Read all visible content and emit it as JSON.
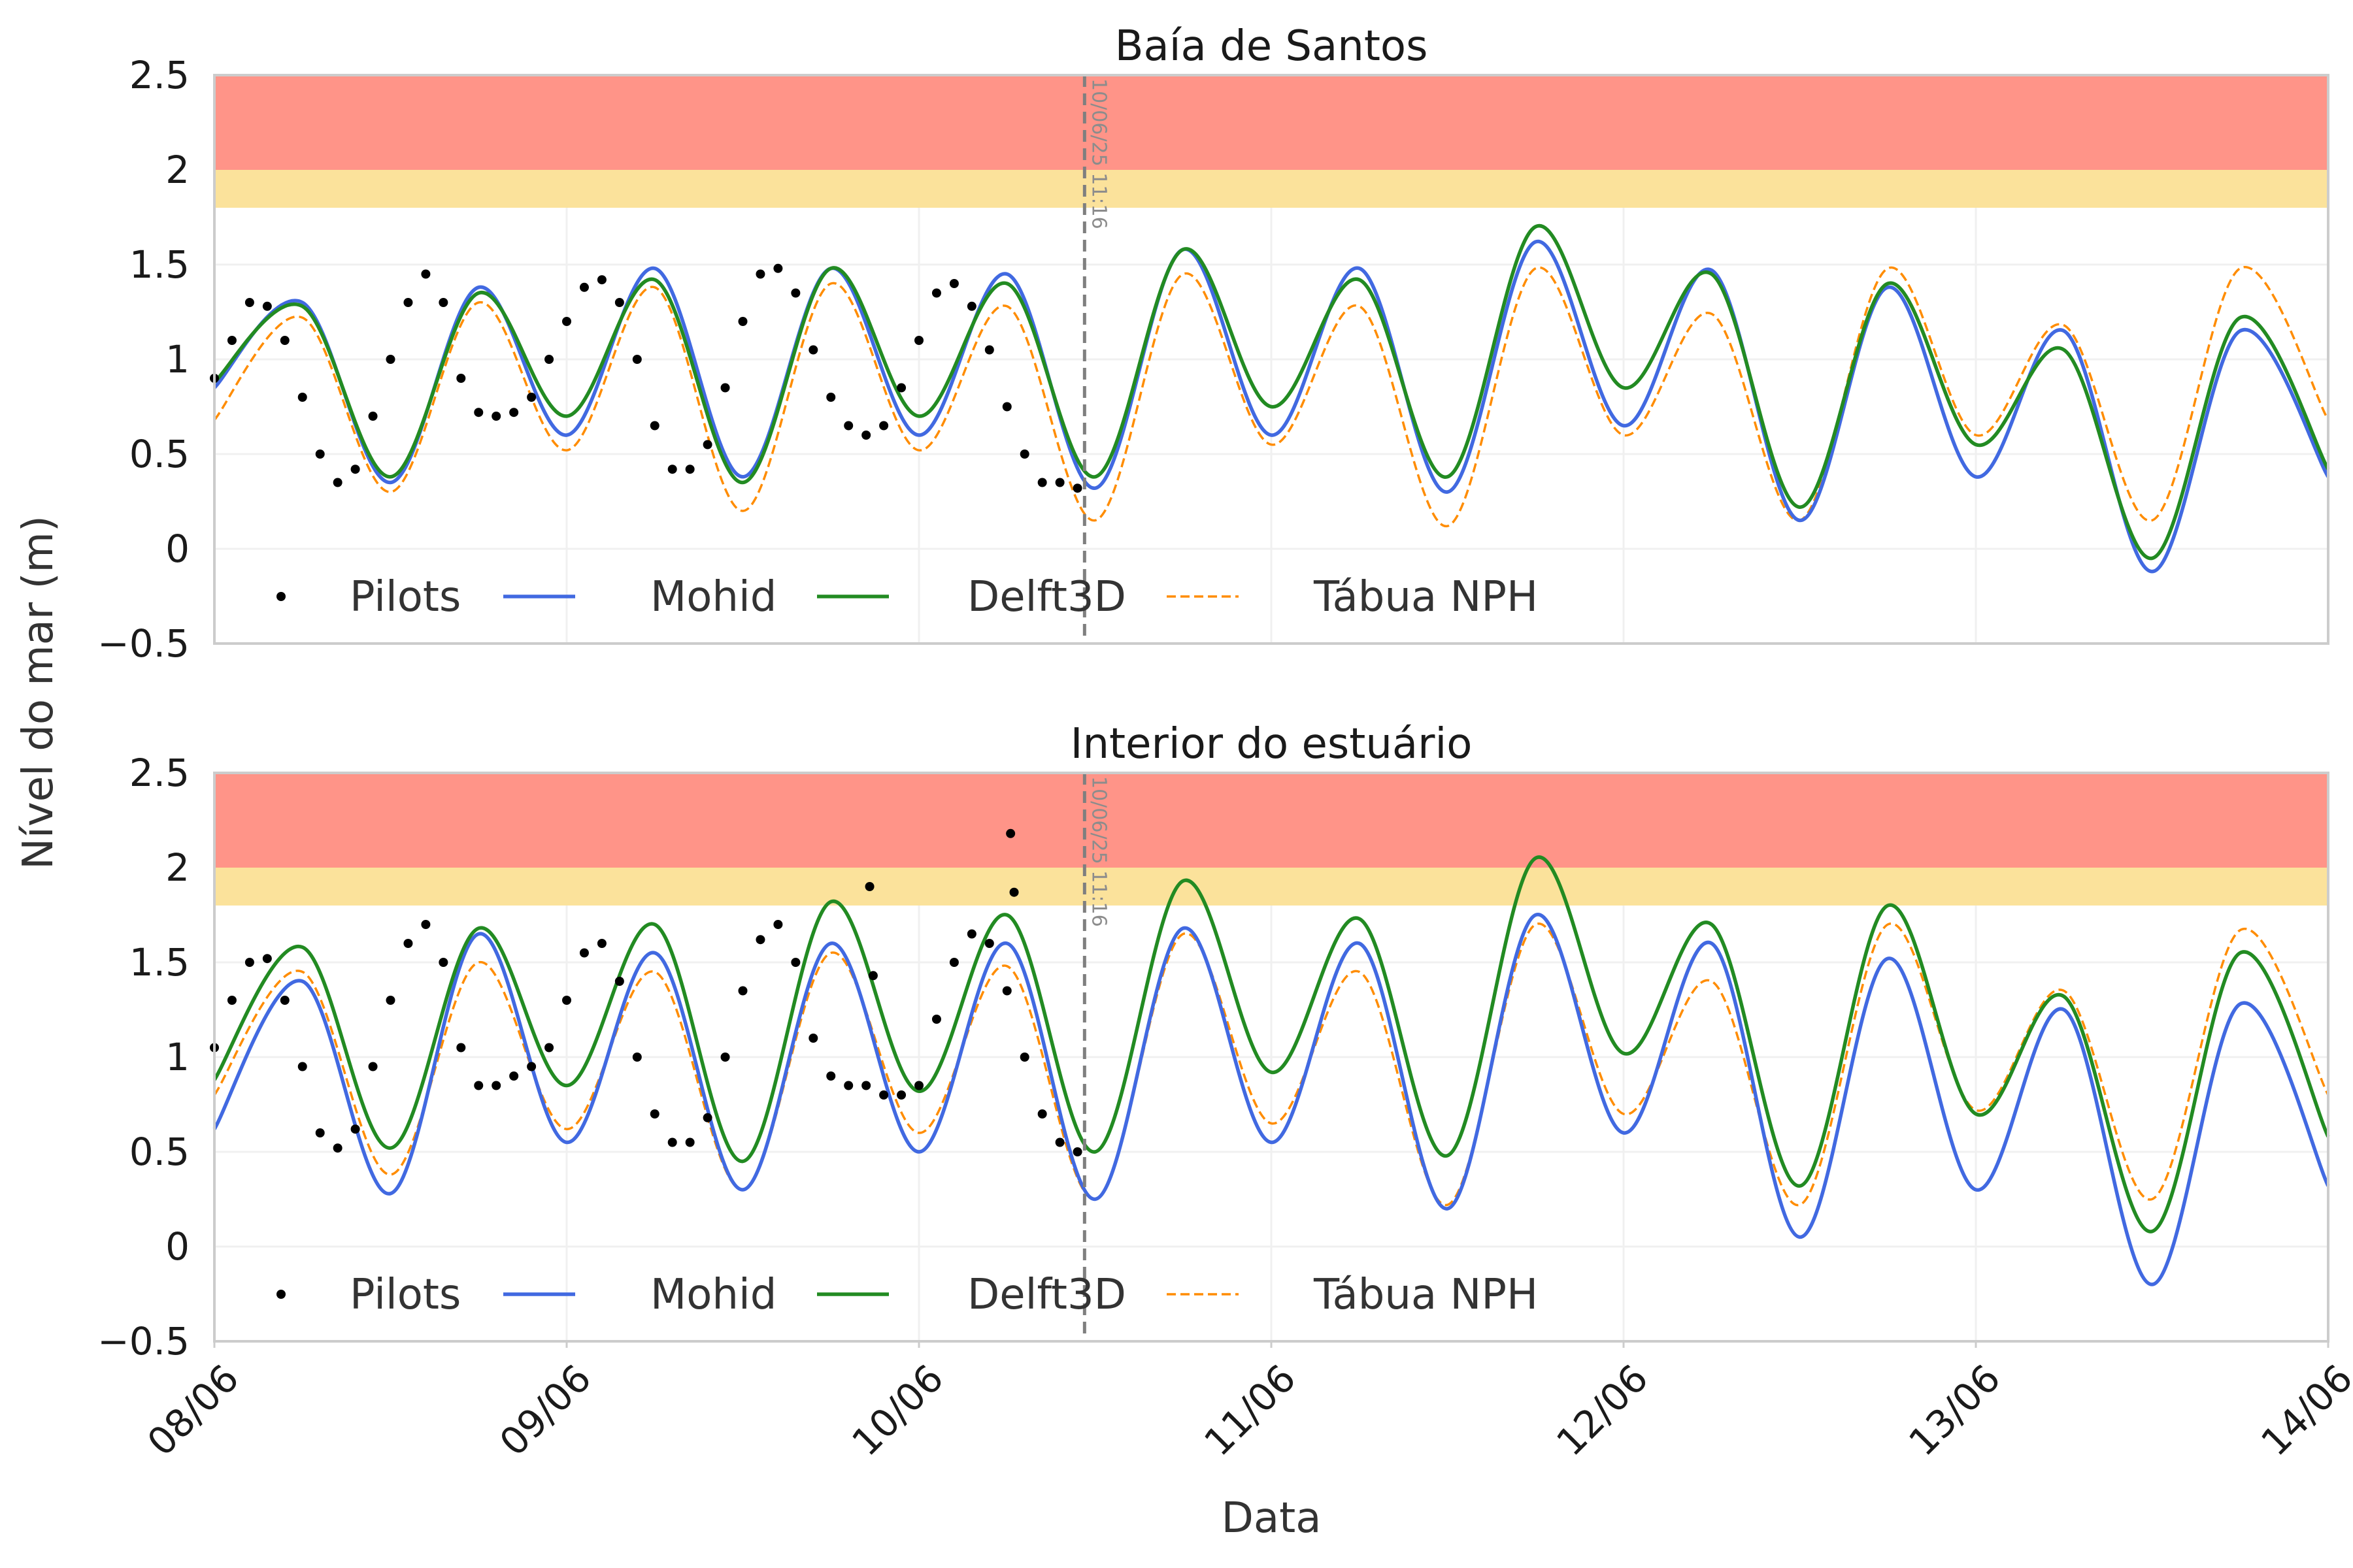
{
  "figure": {
    "ylabel": "Nível do mar (m)",
    "xlabel": "Data",
    "x_ticks": [
      "08/06",
      "09/06",
      "10/06",
      "11/06",
      "12/06",
      "13/06",
      "14/06"
    ],
    "y_ticks": [
      "2.5",
      "2",
      "1.5",
      "1",
      "0.5",
      "0",
      "−0.5"
    ],
    "marker_text": "10/06/25 11:16",
    "legend": [
      {
        "label": "Pilots",
        "style": "dot",
        "color": "#000000"
      },
      {
        "label": "Mohid",
        "style": "line",
        "color": "#4169e1"
      },
      {
        "label": "Delft3D",
        "style": "line",
        "color": "#228b22"
      },
      {
        "label": "Tábua NPH",
        "style": "dashed",
        "color": "#ff8c00"
      }
    ]
  },
  "chart_data": [
    {
      "type": "line",
      "title": "Baía de Santos",
      "x_unit": "days since 08/06 00:00",
      "xlim": [
        0,
        6
      ],
      "ylim": [
        -0.5,
        2.5
      ],
      "bands": [
        {
          "from": 2.0,
          "to": 2.5,
          "color": "#ff9488"
        },
        {
          "from": 1.8,
          "to": 2.0,
          "color": "#fbe29b"
        }
      ],
      "vline_x": 2.47,
      "series": [
        {
          "name": "Pilots",
          "kind": "points",
          "x": [
            0,
            0.05,
            0.1,
            0.15,
            0.2,
            0.25,
            0.3,
            0.35,
            0.4,
            0.45,
            0.5,
            0.55,
            0.6,
            0.65,
            0.7,
            0.75,
            0.8,
            0.85,
            0.9,
            0.95,
            1.0,
            1.05,
            1.1,
            1.15,
            1.2,
            1.25,
            1.3,
            1.35,
            1.4,
            1.45,
            1.5,
            1.55,
            1.6,
            1.65,
            1.7,
            1.75,
            1.8,
            1.85,
            1.9,
            1.95,
            2.0,
            2.05,
            2.1,
            2.15,
            2.2,
            2.25,
            2.3,
            2.35,
            2.4,
            2.45
          ],
          "y": [
            0.9,
            1.1,
            1.3,
            1.28,
            1.1,
            0.8,
            0.5,
            0.35,
            0.42,
            0.7,
            1.0,
            1.3,
            1.45,
            1.3,
            0.9,
            0.72,
            0.7,
            0.72,
            0.8,
            1.0,
            1.2,
            1.38,
            1.42,
            1.3,
            1.0,
            0.65,
            0.42,
            0.42,
            0.55,
            0.85,
            1.2,
            1.45,
            1.48,
            1.35,
            1.05,
            0.8,
            0.65,
            0.6,
            0.65,
            0.85,
            1.1,
            1.35,
            1.4,
            1.28,
            1.05,
            0.75,
            0.5,
            0.35,
            0.35,
            0.32
          ]
        },
        {
          "name": "Mohid",
          "kind": "line",
          "x": [
            0,
            0.25,
            0.5,
            0.75,
            1.0,
            1.25,
            1.5,
            1.75,
            2.0,
            2.25,
            2.5,
            2.75,
            3.0,
            3.25,
            3.5,
            3.75,
            4.0,
            4.25,
            4.5,
            4.75,
            5.0,
            5.25,
            5.5,
            5.75,
            6.0
          ],
          "y": [
            0.85,
            1.3,
            0.35,
            1.38,
            0.6,
            1.48,
            0.38,
            1.48,
            0.6,
            1.45,
            0.32,
            1.58,
            0.6,
            1.48,
            0.3,
            1.62,
            0.65,
            1.47,
            0.15,
            1.38,
            0.38,
            1.15,
            -0.12,
            1.15,
            0.38
          ]
        },
        {
          "name": "Delft3D",
          "kind": "line",
          "x": [
            0,
            0.25,
            0.5,
            0.75,
            1.0,
            1.25,
            1.5,
            1.75,
            2.0,
            2.25,
            2.5,
            2.75,
            3.0,
            3.25,
            3.5,
            3.75,
            4.0,
            4.25,
            4.5,
            4.75,
            5.0,
            5.25,
            5.5,
            5.75,
            6.0
          ],
          "y": [
            0.88,
            1.28,
            0.38,
            1.35,
            0.7,
            1.42,
            0.35,
            1.48,
            0.7,
            1.4,
            0.38,
            1.58,
            0.75,
            1.42,
            0.38,
            1.7,
            0.85,
            1.45,
            0.22,
            1.4,
            0.55,
            1.05,
            -0.05,
            1.22,
            0.42
          ]
        },
        {
          "name": "Tábua NPH",
          "kind": "dashed",
          "x": [
            0,
            0.25,
            0.5,
            0.75,
            1.0,
            1.25,
            1.5,
            1.75,
            2.0,
            2.25,
            2.5,
            2.75,
            3.0,
            3.25,
            3.5,
            3.75,
            4.0,
            4.25,
            4.5,
            4.75,
            5.0,
            5.25,
            5.5,
            5.75,
            6.0
          ],
          "y": [
            0.68,
            1.22,
            0.3,
            1.3,
            0.52,
            1.38,
            0.2,
            1.4,
            0.52,
            1.28,
            0.15,
            1.45,
            0.55,
            1.28,
            0.12,
            1.48,
            0.6,
            1.24,
            0.15,
            1.48,
            0.6,
            1.18,
            0.15,
            1.48,
            0.68
          ]
        }
      ]
    },
    {
      "type": "line",
      "title": "Interior do estuário",
      "x_unit": "days since 08/06 00:00",
      "xlim": [
        0,
        6
      ],
      "ylim": [
        -0.5,
        2.5
      ],
      "bands": [
        {
          "from": 2.0,
          "to": 2.5,
          "color": "#ff9488"
        },
        {
          "from": 1.8,
          "to": 2.0,
          "color": "#fbe29b"
        }
      ],
      "vline_x": 2.47,
      "series": [
        {
          "name": "Pilots",
          "kind": "points",
          "x": [
            0,
            0.05,
            0.1,
            0.15,
            0.2,
            0.25,
            0.3,
            0.35,
            0.4,
            0.45,
            0.5,
            0.55,
            0.6,
            0.65,
            0.7,
            0.75,
            0.8,
            0.85,
            0.9,
            0.95,
            1.0,
            1.05,
            1.1,
            1.15,
            1.2,
            1.25,
            1.3,
            1.35,
            1.4,
            1.45,
            1.5,
            1.55,
            1.6,
            1.65,
            1.7,
            1.75,
            1.8,
            1.85,
            1.86,
            1.87,
            1.9,
            1.95,
            2.0,
            2.05,
            2.1,
            2.15,
            2.2,
            2.25,
            2.26,
            2.27,
            2.3,
            2.35,
            2.4,
            2.45
          ],
          "y": [
            1.05,
            1.3,
            1.5,
            1.52,
            1.3,
            0.95,
            0.6,
            0.52,
            0.62,
            0.95,
            1.3,
            1.6,
            1.7,
            1.5,
            1.05,
            0.85,
            0.85,
            0.9,
            0.95,
            1.05,
            1.3,
            1.55,
            1.6,
            1.4,
            1.0,
            0.7,
            0.55,
            0.55,
            0.68,
            1.0,
            1.35,
            1.62,
            1.7,
            1.5,
            1.1,
            0.9,
            0.85,
            0.85,
            1.9,
            1.43,
            0.8,
            0.8,
            0.85,
            1.2,
            1.5,
            1.65,
            1.6,
            1.35,
            2.18,
            1.87,
            1.0,
            0.7,
            0.55,
            0.5
          ]
        },
        {
          "name": "Mohid",
          "kind": "line",
          "x": [
            0,
            0.25,
            0.5,
            0.75,
            1.0,
            1.25,
            1.5,
            1.75,
            2.0,
            2.25,
            2.5,
            2.75,
            3.0,
            3.25,
            3.5,
            3.75,
            4.0,
            4.25,
            4.5,
            4.75,
            5.0,
            5.25,
            5.5,
            5.75,
            6.0
          ],
          "y": [
            0.62,
            1.4,
            0.28,
            1.65,
            0.55,
            1.55,
            0.3,
            1.6,
            0.5,
            1.6,
            0.25,
            1.68,
            0.55,
            1.6,
            0.2,
            1.75,
            0.6,
            1.6,
            0.05,
            1.52,
            0.3,
            1.25,
            -0.2,
            1.28,
            0.32
          ]
        },
        {
          "name": "Delft3D",
          "kind": "line",
          "x": [
            0,
            0.25,
            0.5,
            0.75,
            1.0,
            1.25,
            1.5,
            1.75,
            2.0,
            2.25,
            2.5,
            2.75,
            3.0,
            3.25,
            3.5,
            3.75,
            4.0,
            4.25,
            4.5,
            4.75,
            5.0,
            5.25,
            5.5,
            5.75,
            6.0
          ],
          "y": [
            0.88,
            1.58,
            0.52,
            1.68,
            0.85,
            1.7,
            0.45,
            1.82,
            0.82,
            1.75,
            0.5,
            1.93,
            0.92,
            1.73,
            0.48,
            2.05,
            1.02,
            1.7,
            0.32,
            1.8,
            0.7,
            1.32,
            0.08,
            1.55,
            0.58
          ]
        },
        {
          "name": "Tábua NPH",
          "kind": "dashed",
          "x": [
            0,
            0.25,
            0.5,
            0.75,
            1.0,
            1.25,
            1.5,
            1.75,
            2.0,
            2.25,
            2.5,
            2.75,
            3.0,
            3.25,
            3.5,
            3.75,
            4.0,
            4.25,
            4.5,
            4.75,
            5.0,
            5.25,
            5.5,
            5.75,
            6.0
          ],
          "y": [
            0.8,
            1.45,
            0.38,
            1.5,
            0.62,
            1.45,
            0.3,
            1.55,
            0.6,
            1.48,
            0.25,
            1.65,
            0.65,
            1.45,
            0.22,
            1.7,
            0.7,
            1.4,
            0.22,
            1.7,
            0.72,
            1.35,
            0.25,
            1.67,
            0.8
          ]
        }
      ]
    }
  ]
}
